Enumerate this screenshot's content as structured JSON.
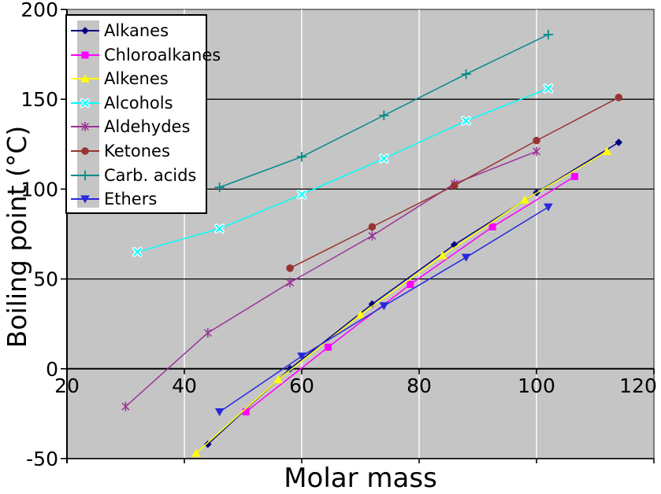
{
  "chart_data": {
    "type": "line",
    "title": "",
    "xlabel": "Molar mass",
    "ylabel": "Boiling point (°C)",
    "xlim": [
      20,
      120
    ],
    "ylim": [
      -50,
      200
    ],
    "x_ticks": [
      20,
      40,
      60,
      80,
      100,
      120
    ],
    "y_ticks": [
      200,
      150,
      100,
      50,
      0,
      -50
    ],
    "grid": "on",
    "gridline_colors": {
      "horizontal": "#000000",
      "vertical": "#ffffff"
    },
    "plot_background": "#c5c5c5",
    "legend_position": "top-left",
    "series": [
      {
        "name": "Alkanes",
        "color": "#000080",
        "marker": "diamond",
        "points": [
          [
            44,
            -42
          ],
          [
            58,
            0
          ],
          [
            72,
            36
          ],
          [
            86,
            69
          ],
          [
            100,
            98
          ],
          [
            114,
            126
          ]
        ]
      },
      {
        "name": "Chloroalkanes",
        "color": "#ff00ff",
        "marker": "square",
        "points": [
          [
            50.5,
            -24
          ],
          [
            64.5,
            12
          ],
          [
            78.5,
            47
          ],
          [
            92.5,
            79
          ],
          [
            106.5,
            107
          ]
        ]
      },
      {
        "name": "Alkenes",
        "color": "#ffff00",
        "marker": "triangle-up",
        "points": [
          [
            42,
            -47
          ],
          [
            56,
            -6
          ],
          [
            70,
            30
          ],
          [
            84,
            63
          ],
          [
            98,
            94
          ],
          [
            112,
            121
          ]
        ]
      },
      {
        "name": "Alcohols",
        "color": "#00ffff",
        "marker": "x",
        "points": [
          [
            32,
            65
          ],
          [
            46,
            78
          ],
          [
            60,
            97
          ],
          [
            74,
            117
          ],
          [
            88,
            138
          ],
          [
            102,
            156
          ]
        ]
      },
      {
        "name": "Aldehydes",
        "color": "#993399",
        "marker": "asterisk",
        "points": [
          [
            30,
            -21
          ],
          [
            44,
            20
          ],
          [
            58,
            48
          ],
          [
            72,
            74
          ],
          [
            86,
            103
          ],
          [
            100,
            121
          ]
        ]
      },
      {
        "name": "Ketones",
        "color": "#993333",
        "marker": "circle",
        "points": [
          [
            58,
            56
          ],
          [
            72,
            79
          ],
          [
            86,
            102
          ],
          [
            100,
            127
          ],
          [
            114,
            151
          ]
        ]
      },
      {
        "name": "Carb. acids",
        "color": "#008b8b",
        "marker": "plus",
        "points": [
          [
            46,
            101
          ],
          [
            60,
            118
          ],
          [
            74,
            141
          ],
          [
            88,
            164
          ],
          [
            102,
            186
          ]
        ]
      },
      {
        "name": "Ethers",
        "color": "#2828dc",
        "marker": "triangle-down",
        "points": [
          [
            46,
            -24
          ],
          [
            60,
            7
          ],
          [
            74,
            35
          ],
          [
            88,
            62
          ],
          [
            102,
            90
          ]
        ]
      }
    ]
  }
}
